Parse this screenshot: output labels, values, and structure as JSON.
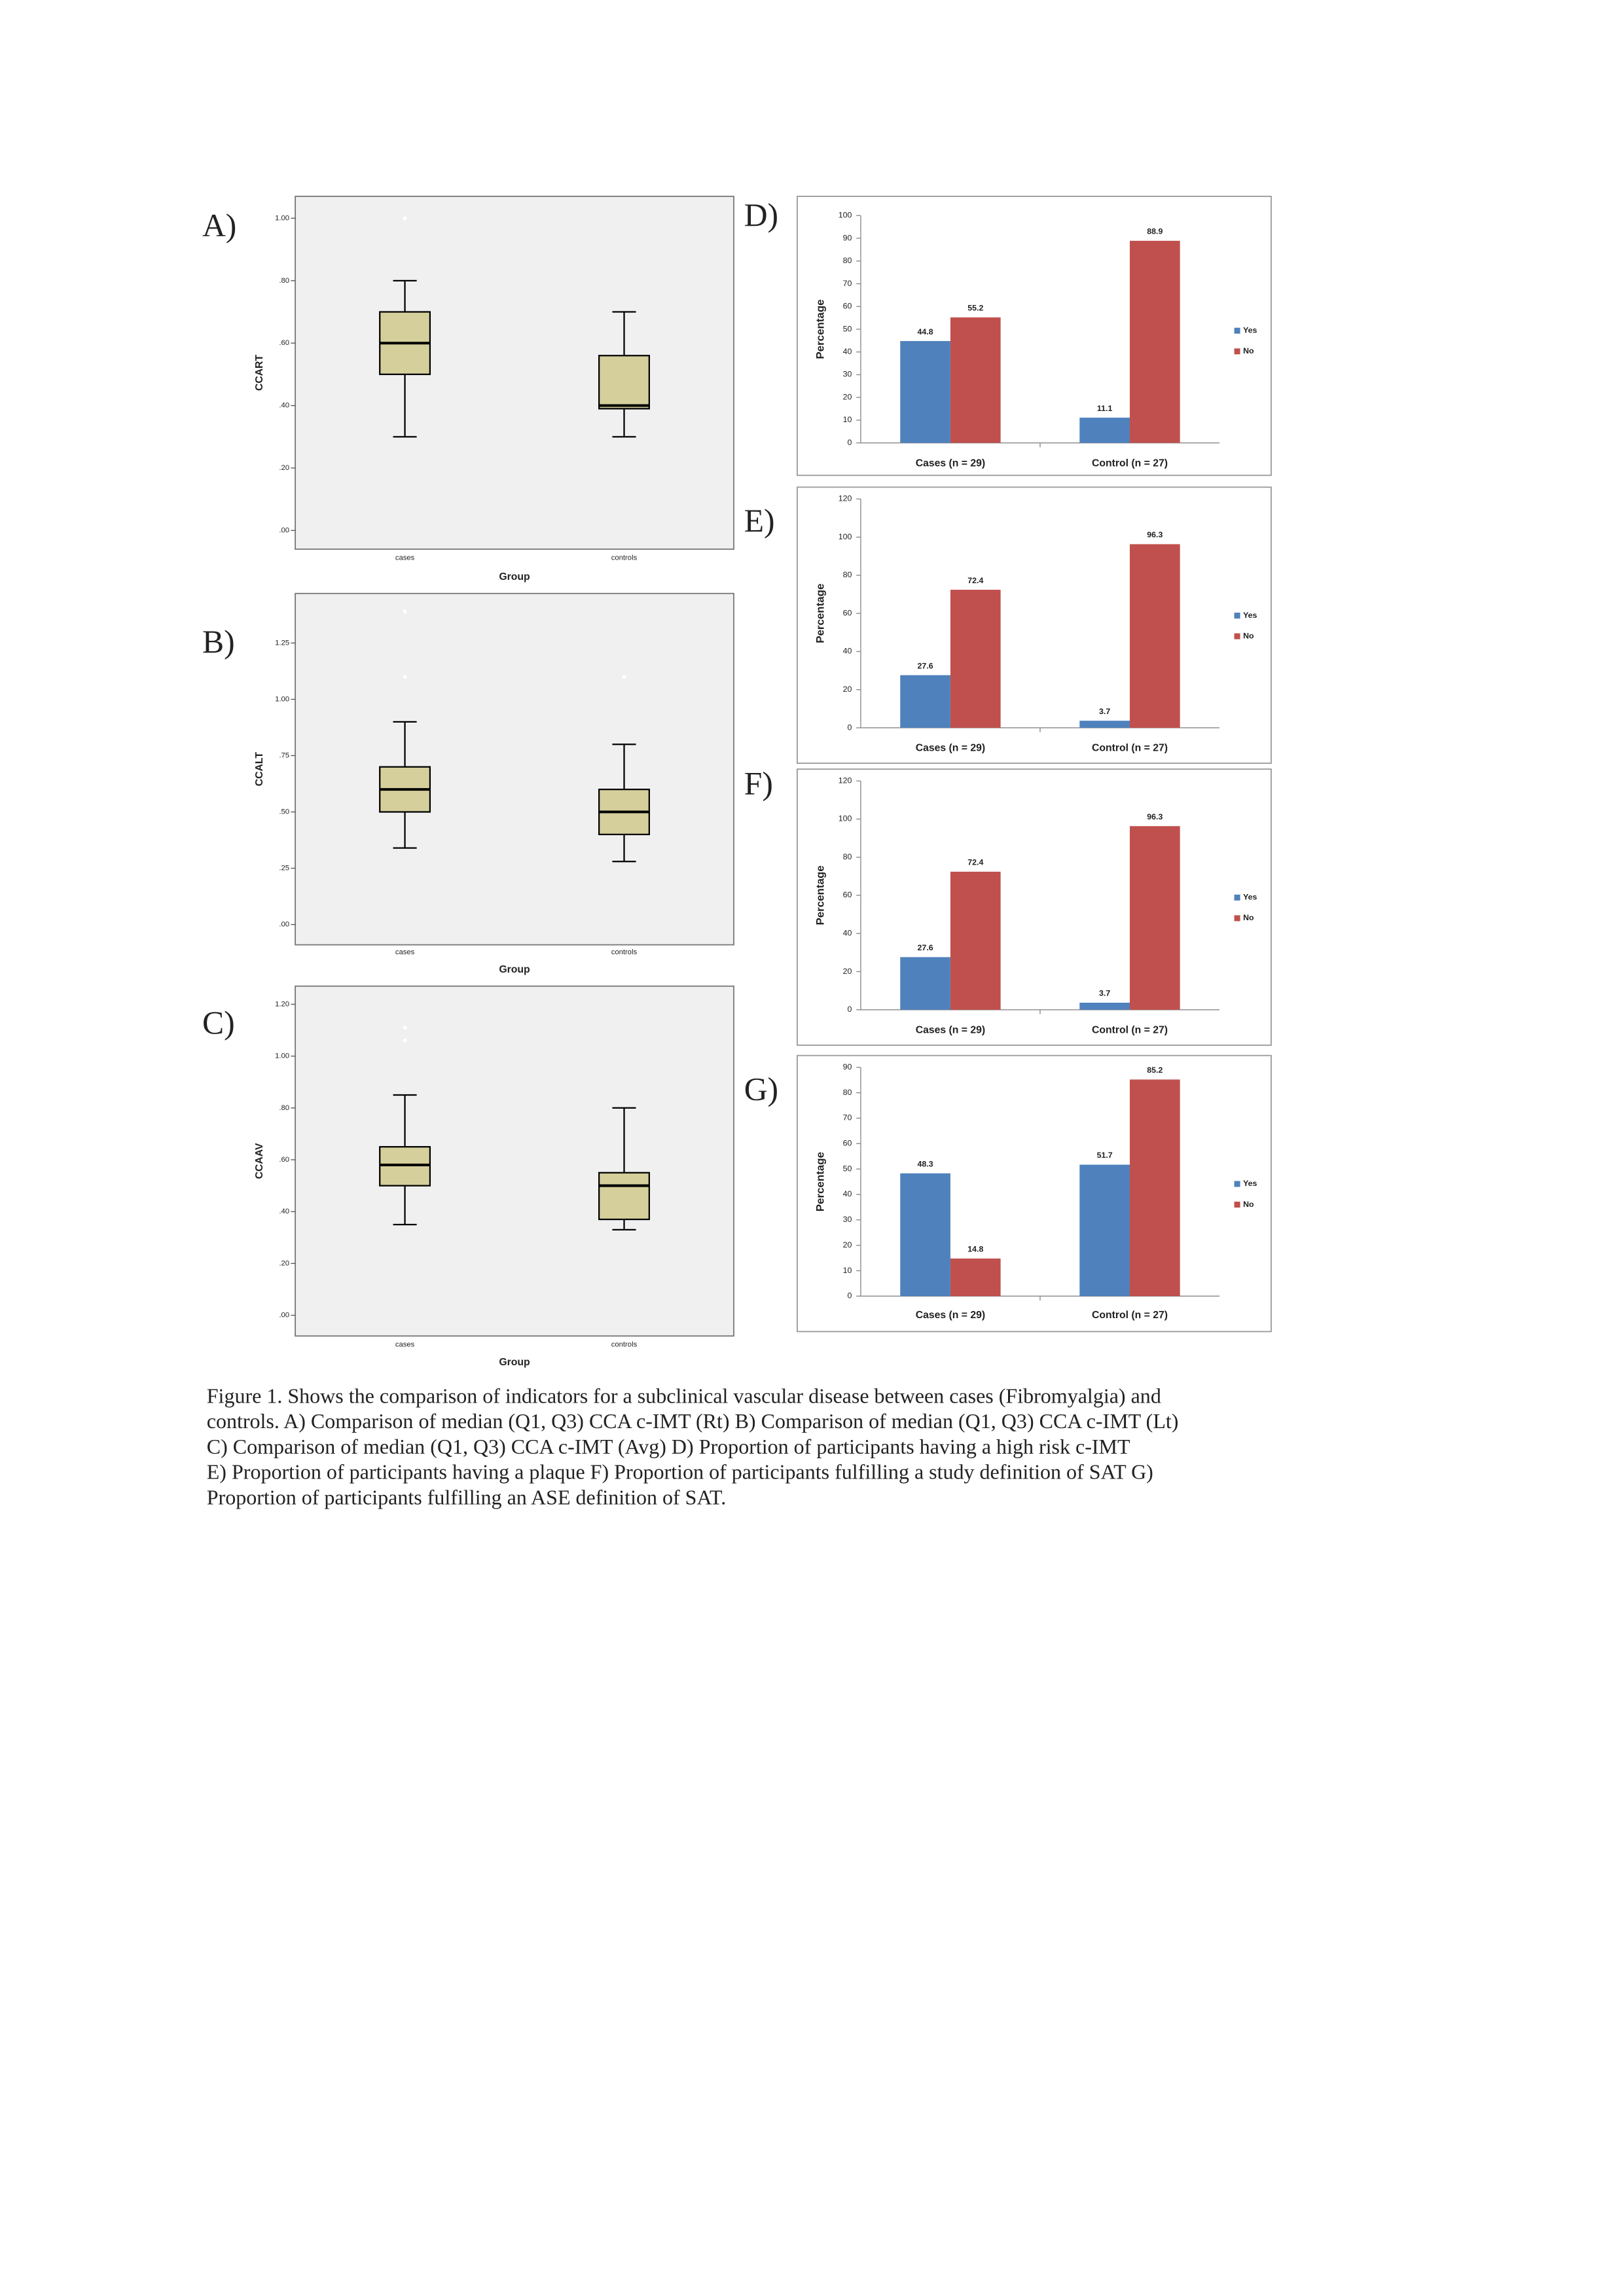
{
  "panels": [
    "A)",
    "B)",
    "C)",
    "D)",
    "E)",
    "F)",
    "G)"
  ],
  "chart_data": [
    {
      "type": "box",
      "y_label": "CCART",
      "x_label": "Group",
      "categories": [
        "cases",
        "controls"
      ],
      "color": "#d4cf9b",
      "ylim": [
        -0.06,
        1.07
      ],
      "yticks": [
        {
          "value": 0,
          "label": ".00"
        },
        {
          "value": 0.2,
          "label": ".20"
        },
        {
          "value": 0.4,
          "label": ".40"
        },
        {
          "value": 0.6,
          "label": ".60"
        },
        {
          "value": 0.8,
          "label": ".80"
        },
        {
          "value": 1,
          "label": "1.00"
        }
      ],
      "boxes": [
        {
          "low": 0.3,
          "q1": 0.5,
          "median": 0.6,
          "q3": 0.7,
          "high": 0.8,
          "outliers": [
            1.0
          ]
        },
        {
          "low": 0.3,
          "q1": 0.39,
          "median": 0.4,
          "q3": 0.56,
          "high": 0.7,
          "outliers": []
        }
      ]
    },
    {
      "type": "box",
      "y_label": "CCALT",
      "x_label": "Group",
      "categories": [
        "cases",
        "controls"
      ],
      "color": "#d4cf9b",
      "ylim": [
        -0.09,
        1.47
      ],
      "yticks": [
        {
          "value": 0,
          "label": ".00"
        },
        {
          "value": 0.25,
          "label": ".25"
        },
        {
          "value": 0.5,
          "label": ".50"
        },
        {
          "value": 0.75,
          "label": ".75"
        },
        {
          "value": 1,
          "label": "1.00"
        },
        {
          "value": 1.25,
          "label": "1.25"
        }
      ],
      "boxes": [
        {
          "low": 0.34,
          "q1": 0.5,
          "median": 0.6,
          "q3": 0.7,
          "high": 0.9,
          "outliers": [
            1.1,
            1.39
          ]
        },
        {
          "low": 0.28,
          "q1": 0.4,
          "median": 0.5,
          "q3": 0.6,
          "high": 0.8,
          "outliers": [
            1.1
          ]
        }
      ]
    },
    {
      "type": "box",
      "y_label": "CCAAV",
      "x_label": "Group",
      "categories": [
        "cases",
        "controls"
      ],
      "color": "#d4cf9b",
      "ylim": [
        -0.08,
        1.27
      ],
      "yticks": [
        {
          "value": 0,
          "label": ".00"
        },
        {
          "value": 0.2,
          "label": ".20"
        },
        {
          "value": 0.4,
          "label": ".40"
        },
        {
          "value": 0.6,
          "label": ".60"
        },
        {
          "value": 0.8,
          "label": ".80"
        },
        {
          "value": 1,
          "label": "1.00"
        },
        {
          "value": 1.2,
          "label": "1.20"
        }
      ],
      "boxes": [
        {
          "low": 0.35,
          "q1": 0.5,
          "median": 0.58,
          "q3": 0.65,
          "high": 0.85,
          "outliers": [
            1.11,
            1.06
          ]
        },
        {
          "low": 0.33,
          "q1": 0.37,
          "median": 0.5,
          "q3": 0.55,
          "high": 0.8,
          "outliers": []
        }
      ]
    },
    {
      "type": "bar",
      "y_label": "Percentage",
      "categories": [
        "Cases (n = 29)",
        "Control (n = 27)"
      ],
      "series": [
        {
          "name": "Yes",
          "color": "#4f81bd",
          "values": [
            44.8,
            11.1
          ]
        },
        {
          "name": "No",
          "color": "#c0504d",
          "values": [
            55.2,
            88.9
          ]
        }
      ],
      "ylim": [
        0,
        100
      ],
      "yticks": [
        0,
        10,
        20,
        30,
        40,
        50,
        60,
        70,
        80,
        90,
        100
      ],
      "legend": "right"
    },
    {
      "type": "bar",
      "y_label": "Percentage",
      "categories": [
        "Cases (n = 29)",
        "Control (n = 27)"
      ],
      "series": [
        {
          "name": "Yes",
          "color": "#4f81bd",
          "values": [
            27.6,
            3.7
          ]
        },
        {
          "name": "No",
          "color": "#c0504d",
          "values": [
            72.4,
            96.3
          ]
        }
      ],
      "ylim": [
        0,
        120
      ],
      "yticks": [
        0,
        20,
        40,
        60,
        80,
        100,
        120
      ],
      "legend": "right"
    },
    {
      "type": "bar",
      "y_label": "Percentage",
      "categories": [
        "Cases (n = 29)",
        "Control (n = 27)"
      ],
      "series": [
        {
          "name": "Yes",
          "color": "#4f81bd",
          "values": [
            27.6,
            3.7
          ]
        },
        {
          "name": "No",
          "color": "#c0504d",
          "values": [
            72.4,
            96.3
          ]
        }
      ],
      "ylim": [
        0,
        120
      ],
      "yticks": [
        0,
        20,
        40,
        60,
        80,
        100,
        120
      ],
      "legend": "right"
    },
    {
      "type": "bar",
      "y_label": "Percentage",
      "categories": [
        "Cases (n = 29)",
        "Control (n = 27)"
      ],
      "series": [
        {
          "name": "Yes",
          "color": "#4f81bd",
          "values": [
            48.3,
            51.7
          ]
        },
        {
          "name": "No",
          "color": "#c0504d",
          "values": [
            14.8,
            85.2
          ]
        }
      ],
      "ylim": [
        0,
        90
      ],
      "yticks": [
        0,
        10,
        20,
        30,
        40,
        50,
        60,
        70,
        80,
        90
      ],
      "legend": "right"
    }
  ],
  "caption": [
    "Figure 1. Shows the comparison of indicators for a subclinical vascular disease between cases (Fibromyalgia) and",
    "controls. A) Comparison of median (Q1, Q3) CCA c-IMT (Rt) B)  Comparison of median (Q1, Q3) CCA c-IMT (Lt)",
    "C)  Comparison of median (Q1, Q3) CCA c-IMT (Avg) D) Proportion of participants having a high risk c-IMT",
    "E) Proportion of participants having a plaque F) Proportion of participants fulfilling a study definition of SAT G)",
    "Proportion of participants fulfilling an ASE definition of SAT."
  ]
}
